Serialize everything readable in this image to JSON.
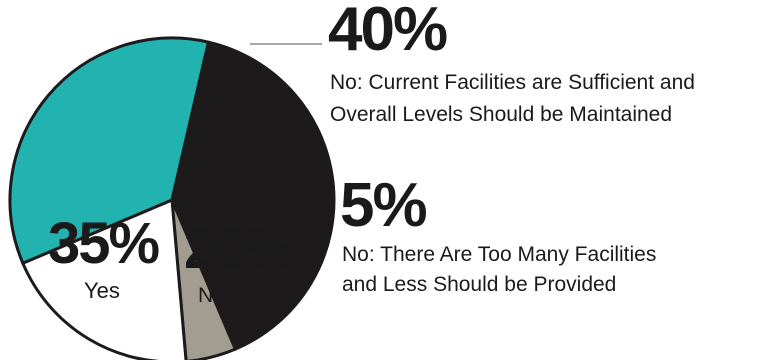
{
  "chart_data": {
    "type": "pie",
    "slices": [
      {
        "label": "No: Current Facilities are Sufficient and Overall Levels Should be Maintained",
        "value": 40,
        "percent_text": "40%",
        "color": "#1c1a1b"
      },
      {
        "label": "No: There Are Too Many Facilities and Less Should be Provided",
        "value": 5,
        "percent_text": "5%",
        "color": "#a39d91"
      },
      {
        "label": "Not Sure",
        "value": 20,
        "percent_text": "20%",
        "color": "#ffffff"
      },
      {
        "label": "Yes",
        "value": 35,
        "percent_text": "35%",
        "color": "#22b3b0"
      }
    ],
    "callouts": {
      "maintain": {
        "percent": "40%",
        "line1": "No: Current Facilities are Sufficient and",
        "line2": "Overall Levels Should be Maintained"
      },
      "too_many": {
        "percent": "5%",
        "line1": "No: There Are Too Many Facilities",
        "line2": "and Less Should be Provided"
      }
    },
    "inner_labels": {
      "yes": {
        "percent": "35%",
        "label": "Yes"
      },
      "not_sure": {
        "percent": "20%",
        "label": "Not Sure"
      }
    }
  }
}
